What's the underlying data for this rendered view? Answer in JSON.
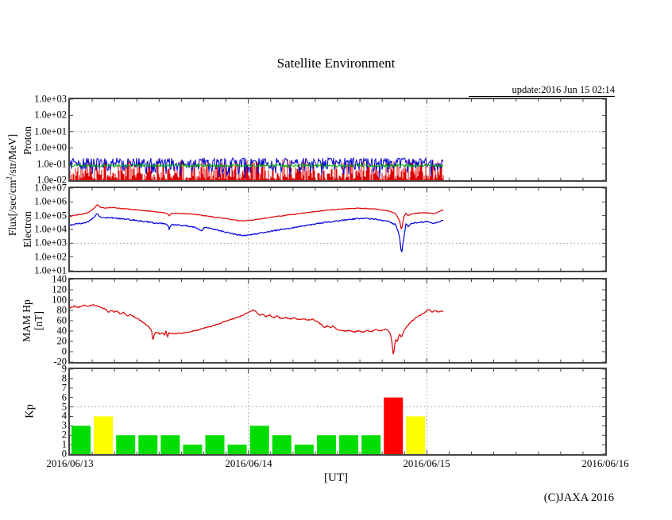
{
  "title": "Satellite Environment",
  "update_label": "update:2016 Jun 15 02:14",
  "copyright": "(C)JAXA 2016",
  "xaxis": {
    "label": "[UT]",
    "tick_labels": [
      "2016/06/13",
      "2016/06/14",
      "2016/06/15",
      "2016/06/16"
    ]
  },
  "labels": {
    "flux_pre": "Flux[/sec/cm",
    "flux_sup": "2",
    "flux_post": "/str/MeV]",
    "proton": "Proton",
    "electron": "Electron",
    "mam_line1": "MAM Hp",
    "mam_line2": "[nT]",
    "kp": "Kp"
  },
  "colors": {
    "plot_red": "#dd0000",
    "plot_blue": "#0000cc",
    "electron_red": "#dd0000",
    "electron_blue": "#0000dd",
    "plot_green": "#00b400",
    "mam_red": "#dd0000",
    "kp_green": "#00dd00",
    "kp_yellow": "#ffff00",
    "kp_red": "#ff0000",
    "grid": "#999999",
    "frame": "#444444"
  },
  "chart_data": [
    {
      "id": "proton_flux",
      "type": "line",
      "panel_label": "Proton",
      "yscale": "log",
      "ylim_log10": [
        -2,
        3
      ],
      "ytick_labels": [
        "1.0e+03",
        "1.0e+02",
        "1.0e+01",
        "1.0e+00",
        "1.0e-01",
        "1.0e-02"
      ],
      "grid_y_log10": 1,
      "x_range_hours": [
        0,
        72
      ],
      "data_end_hour": 50.2,
      "series": [
        {
          "name": "red-channel",
          "color_key": "plot_red",
          "style": "impulses",
          "base_log10": -2,
          "spike_amp_log10": 1.32,
          "spike_power": 1.7
        },
        {
          "name": "blue-channel",
          "color_key": "plot_blue",
          "style": "noisy-line",
          "base_log10": -2,
          "band_amp_log10": 1.38,
          "band_power": 0.42,
          "max_log10": -0.62
        },
        {
          "name": "green-channel",
          "color_key": "plot_green",
          "style": "noisy-line",
          "level_log10": -1.1,
          "noise_log10": 0.16
        }
      ],
      "noise_seed": 987654321
    },
    {
      "id": "electron_flux",
      "type": "line",
      "panel_label": "Electron",
      "yscale": "log",
      "ylim_log10": [
        1,
        7
      ],
      "ytick_labels": [
        "1.0e+07",
        "1.0e+06",
        "1.0e+05",
        "1.0e+04",
        "1.0e+03",
        "1.0e+02",
        "1.0e+01"
      ],
      "grid_y_log10": 3,
      "x_range_hours": [
        0,
        72
      ],
      "data_end_hour": 50.2,
      "series": [
        {
          "name": "red-channel",
          "color_key": "electron_red",
          "noise_log10": 0.05,
          "anchors_hour_log10": [
            [
              0,
              4.95
            ],
            [
              0.8,
              5.05
            ],
            [
              1.6,
              5.1
            ],
            [
              2.4,
              5.2
            ],
            [
              3.2,
              5.5
            ],
            [
              3.7,
              5.82
            ],
            [
              4.1,
              5.62
            ],
            [
              4.6,
              5.55
            ],
            [
              5.5,
              5.6
            ],
            [
              7,
              5.52
            ],
            [
              9,
              5.42
            ],
            [
              11,
              5.32
            ],
            [
              12.5,
              5.22
            ],
            [
              13.1,
              5.18
            ],
            [
              13.35,
              5.0
            ],
            [
              13.7,
              5.18
            ],
            [
              15,
              5.15
            ],
            [
              16.5,
              5.12
            ],
            [
              18,
              5.0
            ],
            [
              19.5,
              4.9
            ],
            [
              21,
              4.78
            ],
            [
              22.2,
              4.68
            ],
            [
              23.2,
              4.63
            ],
            [
              24,
              4.66
            ],
            [
              25,
              4.72
            ],
            [
              26,
              4.8
            ],
            [
              27.5,
              4.92
            ],
            [
              29,
              5.02
            ],
            [
              31,
              5.16
            ],
            [
              33,
              5.3
            ],
            [
              35,
              5.42
            ],
            [
              37,
              5.5
            ],
            [
              38.5,
              5.54
            ],
            [
              40,
              5.52
            ],
            [
              41.5,
              5.46
            ],
            [
              42.8,
              5.35
            ],
            [
              43.8,
              5.15
            ],
            [
              44.3,
              4.7
            ],
            [
              44.6,
              3.95
            ],
            [
              44.9,
              4.9
            ],
            [
              45.2,
              5.18
            ],
            [
              45.5,
              5.0
            ],
            [
              45.9,
              5.12
            ],
            [
              46.4,
              5.18
            ],
            [
              47.2,
              5.2
            ],
            [
              48,
              5.22
            ],
            [
              48.7,
              5.15
            ],
            [
              49.3,
              5.2
            ],
            [
              49.8,
              5.35
            ],
            [
              50.2,
              5.42
            ]
          ]
        },
        {
          "name": "blue-channel",
          "color_key": "electron_blue",
          "noise_log10": 0.09,
          "anchors_hour_log10": [
            [
              0,
              4.3
            ],
            [
              0.8,
              4.4
            ],
            [
              1.6,
              4.45
            ],
            [
              2.4,
              4.55
            ],
            [
              3.2,
              4.85
            ],
            [
              3.7,
              5.15
            ],
            [
              4.1,
              4.9
            ],
            [
              4.6,
              4.82
            ],
            [
              5.5,
              4.85
            ],
            [
              7,
              4.78
            ],
            [
              9,
              4.65
            ],
            [
              11,
              4.5
            ],
            [
              12.5,
              4.42
            ],
            [
              13.1,
              4.35
            ],
            [
              13.35,
              4.05
            ],
            [
              13.7,
              4.35
            ],
            [
              15,
              4.3
            ],
            [
              16.5,
              4.2
            ],
            [
              17.8,
              3.92
            ],
            [
              18.1,
              4.15
            ],
            [
              19.5,
              4.0
            ],
            [
              21,
              3.8
            ],
            [
              22.2,
              3.65
            ],
            [
              23.2,
              3.55
            ],
            [
              24,
              3.6
            ],
            [
              25,
              3.68
            ],
            [
              26,
              3.78
            ],
            [
              27.5,
              3.92
            ],
            [
              29,
              4.05
            ],
            [
              31,
              4.22
            ],
            [
              33,
              4.4
            ],
            [
              35,
              4.55
            ],
            [
              37,
              4.68
            ],
            [
              38.5,
              4.78
            ],
            [
              40,
              4.8
            ],
            [
              41.5,
              4.72
            ],
            [
              42.8,
              4.6
            ],
            [
              43.8,
              4.35
            ],
            [
              44.3,
              3.6
            ],
            [
              44.6,
              2.2
            ],
            [
              44.9,
              3.4
            ],
            [
              45.2,
              4.4
            ],
            [
              45.5,
              4.2
            ],
            [
              45.9,
              4.42
            ],
            [
              46.4,
              4.5
            ],
            [
              47.2,
              4.52
            ],
            [
              48,
              4.55
            ],
            [
              48.7,
              4.45
            ],
            [
              49.3,
              4.5
            ],
            [
              49.8,
              4.6
            ],
            [
              50.2,
              4.68
            ]
          ]
        }
      ],
      "noise_seed": 24681357
    },
    {
      "id": "mam_hp",
      "type": "line",
      "panel_label": "MAM Hp [nT]",
      "yscale": "linear",
      "ylim": [
        -20,
        140
      ],
      "ytick_labels": [
        "140",
        "120",
        "100",
        "80",
        "60",
        "40",
        "20",
        "0",
        "-20"
      ],
      "x_range_hours": [
        0,
        72
      ],
      "data_end_hour": 50.2,
      "series": [
        {
          "name": "hp-red",
          "color_key": "mam_red",
          "noise_nt": 2.2,
          "anchors_hour_nt": [
            [
              0,
              85
            ],
            [
              0.6,
              88
            ],
            [
              1.2,
              86
            ],
            [
              1.8,
              90
            ],
            [
              2.4,
              88
            ],
            [
              3,
              91
            ],
            [
              3.6,
              89
            ],
            [
              4.2,
              86
            ],
            [
              4.8,
              82
            ],
            [
              5.2,
              77
            ],
            [
              5.6,
              81
            ],
            [
              6,
              76
            ],
            [
              6.4,
              79
            ],
            [
              6.8,
              72
            ],
            [
              7.2,
              76
            ],
            [
              7.7,
              70
            ],
            [
              8.2,
              72
            ],
            [
              8.8,
              66
            ],
            [
              9.4,
              61
            ],
            [
              10,
              55
            ],
            [
              10.6,
              48
            ],
            [
              11,
              40
            ],
            [
              11.15,
              20
            ],
            [
              11.35,
              33
            ],
            [
              11.6,
              39
            ],
            [
              11.9,
              36
            ],
            [
              12.2,
              34
            ],
            [
              12.5,
              37
            ],
            [
              12.75,
              32
            ],
            [
              12.95,
              41
            ],
            [
              13.1,
              26
            ],
            [
              13.3,
              37
            ],
            [
              13.6,
              35
            ],
            [
              14.2,
              35
            ],
            [
              15,
              36
            ],
            [
              16,
              38
            ],
            [
              17,
              41
            ],
            [
              18,
              45
            ],
            [
              19,
              49
            ],
            [
              20,
              54
            ],
            [
              21,
              59
            ],
            [
              22,
              64
            ],
            [
              23,
              69
            ],
            [
              23.7,
              74
            ],
            [
              24.3,
              78
            ],
            [
              24.7,
              81
            ],
            [
              25.1,
              76
            ],
            [
              25.5,
              71
            ],
            [
              25.9,
              73
            ],
            [
              26.4,
              68
            ],
            [
              26.9,
              71
            ],
            [
              27.4,
              66
            ],
            [
              27.9,
              69
            ],
            [
              28.4,
              64
            ],
            [
              29,
              67
            ],
            [
              29.6,
              63
            ],
            [
              30.2,
              66
            ],
            [
              30.8,
              62
            ],
            [
              31.4,
              64
            ],
            [
              32,
              61
            ],
            [
              32.6,
              63
            ],
            [
              33.2,
              59
            ],
            [
              33.8,
              53
            ],
            [
              34.2,
              46
            ],
            [
              34.6,
              50
            ],
            [
              35,
              47
            ],
            [
              35.4,
              50
            ],
            [
              35.9,
              43
            ],
            [
              36.4,
              41
            ],
            [
              37,
              40
            ],
            [
              37.6,
              42
            ],
            [
              38.2,
              38
            ],
            [
              38.8,
              41
            ],
            [
              39.4,
              38
            ],
            [
              40,
              41
            ],
            [
              40.6,
              39
            ],
            [
              41.2,
              43
            ],
            [
              41.8,
              40
            ],
            [
              42.4,
              44
            ],
            [
              42.9,
              39
            ],
            [
              43.2,
              30
            ],
            [
              43.42,
              5
            ],
            [
              43.5,
              -8
            ],
            [
              43.65,
              10
            ],
            [
              43.8,
              24
            ],
            [
              44,
              19
            ],
            [
              44.3,
              33
            ],
            [
              44.6,
              29
            ],
            [
              44.9,
              40
            ],
            [
              45.4,
              50
            ],
            [
              45.9,
              58
            ],
            [
              46.4,
              64
            ],
            [
              46.9,
              69
            ],
            [
              47.4,
              73
            ],
            [
              47.9,
              78
            ],
            [
              48.3,
              82
            ],
            [
              48.7,
              77
            ],
            [
              49.1,
              80
            ],
            [
              49.5,
              76
            ],
            [
              49.9,
              79
            ],
            [
              50.2,
              78
            ]
          ]
        }
      ],
      "noise_seed": 13572468
    },
    {
      "id": "kp_index",
      "type": "bar",
      "panel_label": "Kp",
      "ylim": [
        0,
        9
      ],
      "ytick_labels": [
        "9",
        "8",
        "7",
        "6",
        "5",
        "4",
        "3",
        "2",
        "1",
        "0"
      ],
      "grid_y": 5,
      "interval_hours": 3,
      "start": "2016/06/13",
      "values": [
        3,
        4,
        2,
        2,
        2,
        1,
        2,
        1,
        3,
        2,
        1,
        2,
        2,
        2,
        6,
        4
      ],
      "bar_colors": [
        "kp_green",
        "kp_yellow",
        "kp_green",
        "kp_green",
        "kp_green",
        "kp_green",
        "kp_green",
        "kp_green",
        "kp_green",
        "kp_green",
        "kp_green",
        "kp_green",
        "kp_green",
        "kp_green",
        "kp_red",
        "kp_yellow"
      ]
    }
  ]
}
